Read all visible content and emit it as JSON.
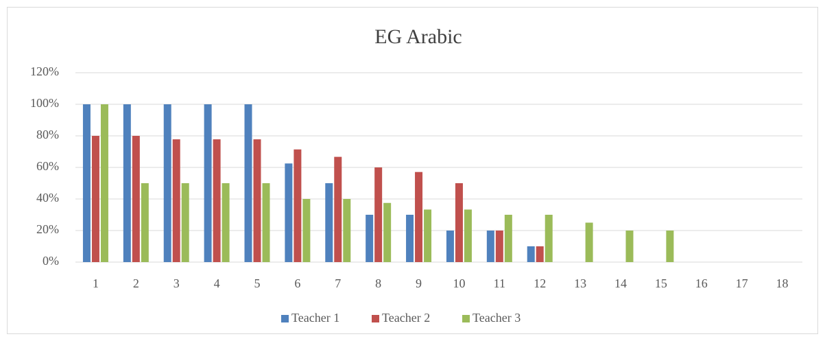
{
  "chart_data": {
    "type": "bar",
    "title": "EG Arabic",
    "categories": [
      1,
      2,
      3,
      4,
      5,
      6,
      7,
      8,
      9,
      10,
      11,
      12,
      13,
      14,
      15,
      16,
      17,
      18
    ],
    "series": [
      {
        "name": "Teacher 1",
        "color": "#4f81bd",
        "values": [
          100,
          100,
          100,
          100,
          100,
          62.5,
          50,
          30,
          30,
          20,
          20,
          10,
          0,
          0,
          0,
          0,
          0,
          0
        ]
      },
      {
        "name": "Teacher 2",
        "color": "#c0504d",
        "values": [
          80,
          80,
          77.8,
          77.8,
          77.8,
          71.4,
          66.7,
          60,
          57.1,
          50,
          20,
          10,
          0,
          0,
          0,
          0,
          0,
          0
        ]
      },
      {
        "name": "Teacher 3",
        "color": "#9bbb59",
        "values": [
          100,
          50,
          50,
          50,
          50,
          40,
          40,
          37.5,
          33.3,
          33.3,
          30,
          30,
          25,
          20,
          20,
          0,
          0,
          0
        ]
      }
    ],
    "ylim": [
      0,
      120
    ],
    "yticks": [
      {
        "value": 0,
        "label": "0%"
      },
      {
        "value": 20,
        "label": "20%"
      },
      {
        "value": 40,
        "label": "40%"
      },
      {
        "value": 60,
        "label": "60%"
      },
      {
        "value": 80,
        "label": "80%"
      },
      {
        "value": 100,
        "label": "100%"
      },
      {
        "value": 120,
        "label": "120%"
      }
    ],
    "grid": true,
    "legend": "bottom"
  }
}
